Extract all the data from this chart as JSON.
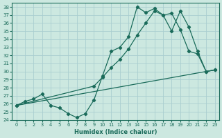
{
  "xlabel": "Humidex (Indice chaleur)",
  "bg_color": "#cce8e0",
  "grid_color": "#aaced0",
  "line_color": "#1a6b5a",
  "xlim": [
    -0.5,
    23.5
  ],
  "ylim": [
    24,
    38.5
  ],
  "xticks": [
    0,
    1,
    2,
    3,
    4,
    5,
    6,
    7,
    8,
    9,
    10,
    11,
    12,
    13,
    14,
    15,
    16,
    17,
    18,
    19,
    20,
    21,
    22,
    23
  ],
  "yticks": [
    24,
    25,
    26,
    27,
    28,
    29,
    30,
    31,
    32,
    33,
    34,
    35,
    36,
    37,
    38
  ],
  "line1_x": [
    0,
    1,
    2,
    3,
    4,
    5,
    6,
    7,
    8,
    9,
    10,
    11,
    12,
    13,
    14,
    15,
    16,
    17,
    18,
    19,
    20,
    21,
    22,
    23
  ],
  "line1_y": [
    25.8,
    26.3,
    26.6,
    27.2,
    25.8,
    25.5,
    24.8,
    24.3,
    24.8,
    26.5,
    29.5,
    32.5,
    33.0,
    34.3,
    38.0,
    37.3,
    37.8,
    37.0,
    37.2,
    35.2,
    32.5,
    32.2,
    30.0,
    30.2
  ],
  "line2_x": [
    0,
    9,
    10,
    11,
    12,
    13,
    14,
    15,
    16,
    17,
    18,
    19,
    20,
    21,
    22,
    23
  ],
  "line2_y": [
    25.8,
    28.2,
    29.3,
    30.5,
    31.5,
    32.8,
    34.5,
    36.0,
    37.5,
    37.0,
    35.0,
    37.5,
    35.5,
    32.5,
    30.0,
    30.2
  ],
  "line3_x": [
    0,
    23
  ],
  "line3_y": [
    25.8,
    30.2
  ],
  "marker": "D",
  "markersize": 2.2,
  "linewidth": 0.9
}
